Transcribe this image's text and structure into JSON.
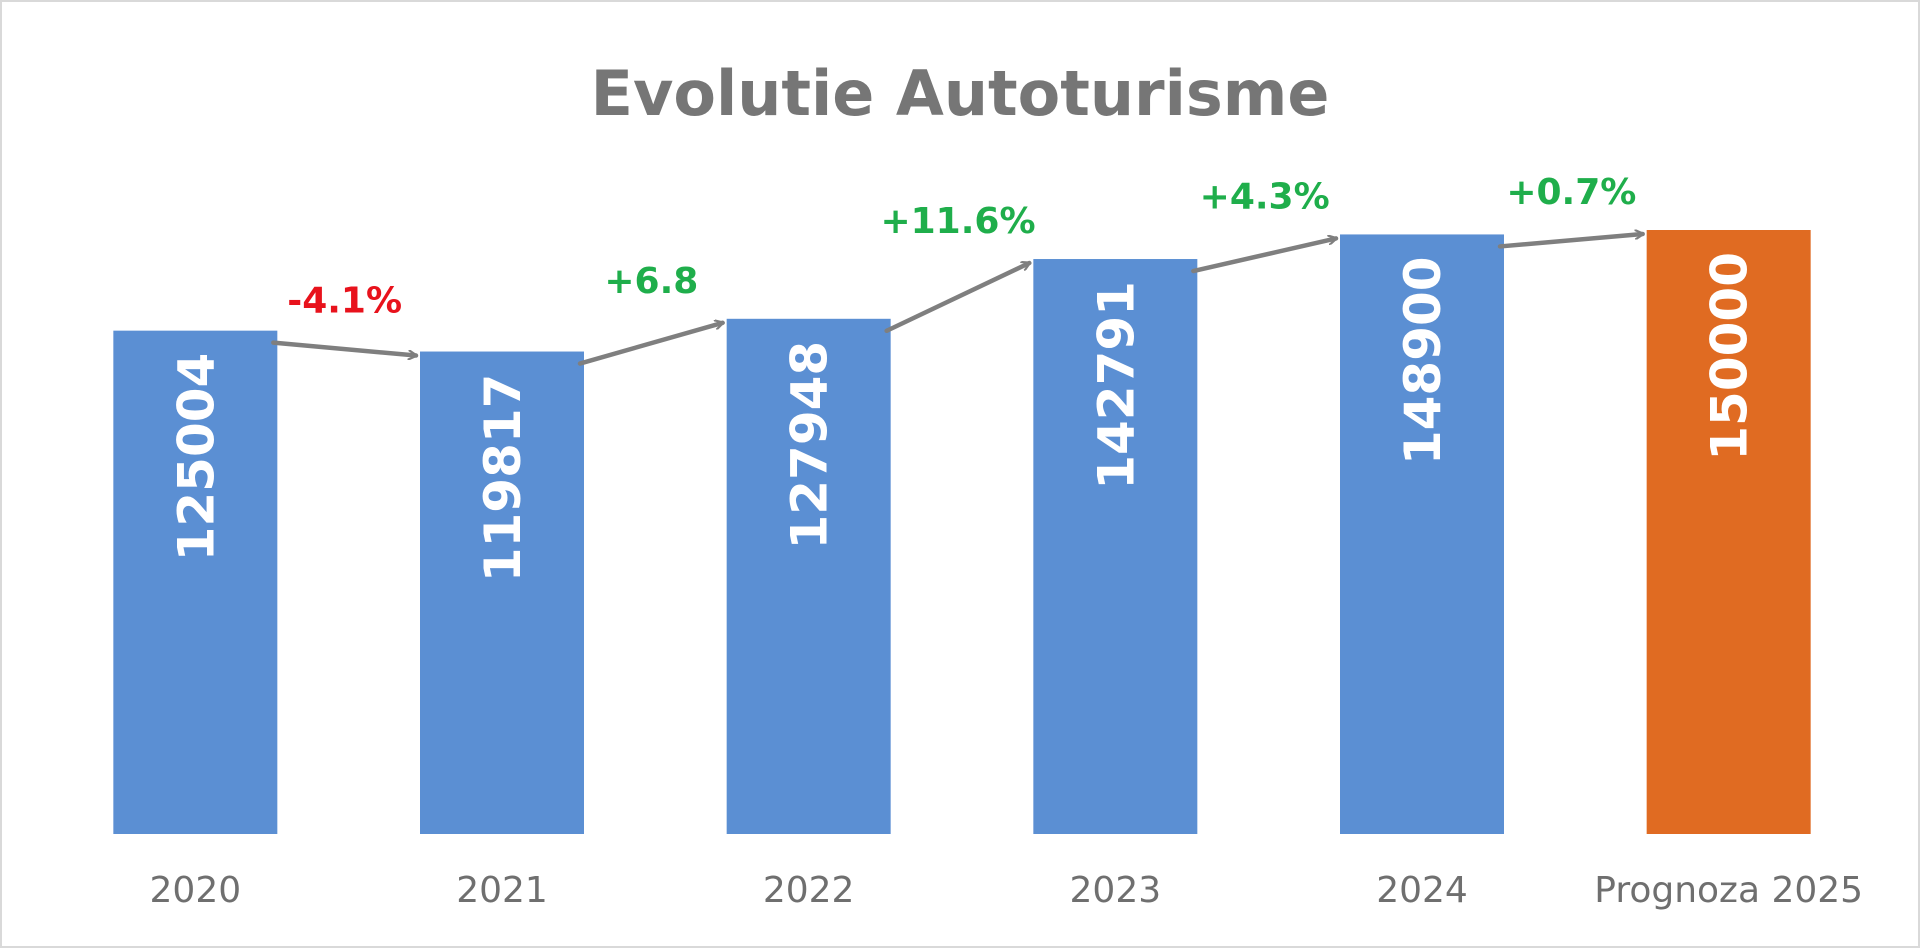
{
  "chart_data": {
    "type": "bar",
    "title": "Evolutie Autoturisme",
    "xlabel": "",
    "ylabel": "",
    "categories": [
      "2020",
      "2021",
      "2022",
      "2023",
      "2024",
      "Prognoza 2025"
    ],
    "values": [
      125004,
      119817,
      127948,
      142791,
      148900,
      150000
    ],
    "data_labels": [
      "125004",
      "119817",
      "127948",
      "142791",
      "148900",
      "150000"
    ],
    "ylim": [
      0,
      150000
    ],
    "grid": false,
    "legend": "none",
    "changes": [
      {
        "label": "-4.1%",
        "trend": "down"
      },
      {
        "label": "+6.8",
        "trend": "up"
      },
      {
        "label": "+11.6%",
        "trend": "up"
      },
      {
        "label": "+4.3%",
        "trend": "up"
      },
      {
        "label": "+0.7%",
        "trend": "up"
      }
    ]
  },
  "colors": {
    "bar_actual": "#5b8fd3",
    "bar_forecast": "#e06b22",
    "arrow": "#7f7f7f",
    "title": "#767676",
    "tick": "#6f6f6f",
    "change_up": "#1fae4b",
    "change_down": "#e8121c"
  }
}
